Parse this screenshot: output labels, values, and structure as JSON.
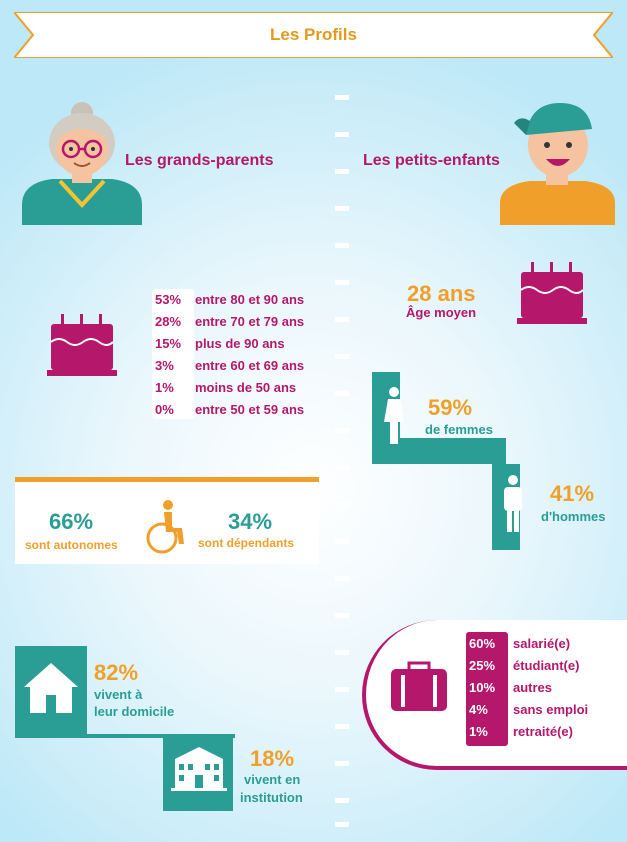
{
  "title": "Les Profils",
  "grandparents": {
    "heading": "Les grands-parents",
    "age_stats": [
      {
        "pct": "53%",
        "label": "entre 80 et 90 ans"
      },
      {
        "pct": "28%",
        "label": "entre 70 et 79 ans"
      },
      {
        "pct": "15%",
        "label": "plus de 90 ans"
      },
      {
        "pct": "3%",
        "label": "entre 60 et 69 ans"
      },
      {
        "pct": "1%",
        "label": "moins de 50 ans"
      },
      {
        "pct": "0%",
        "label": "entre 50 et 59 ans"
      }
    ],
    "autonomy": {
      "autonomous_pct": "66%",
      "autonomous_label": "sont autonomes",
      "dependent_pct": "34%",
      "dependent_label": "sont dépendants"
    },
    "housing": {
      "home_pct": "82%",
      "home_label_1": "vivent à",
      "home_label_2": "leur domicile",
      "institution_pct": "18%",
      "institution_label_1": "vivent en",
      "institution_label_2": "institution"
    }
  },
  "grandchildren": {
    "heading": "Les petits-enfants",
    "avg_age_value": "28 ans",
    "avg_age_label": "Âge moyen",
    "women_pct": "59%",
    "women_label": "de femmes",
    "men_pct": "41%",
    "men_label": "d'hommes",
    "jobs": [
      {
        "pct": "60%",
        "label": "salarié(e)"
      },
      {
        "pct": "25%",
        "label": "étudiant(e)"
      },
      {
        "pct": "10%",
        "label": "autres"
      },
      {
        "pct": "4%",
        "label": "sans emploi"
      },
      {
        "pct": "1%",
        "label": "retraité(e)"
      }
    ]
  },
  "colors": {
    "magenta": "#b5176b",
    "orange": "#f0a02a",
    "teal": "#2a9d95"
  },
  "icons": [
    "grandmother-icon",
    "grandchild-icon",
    "birthday-cake-icon",
    "wheelchair-icon",
    "woman-icon",
    "man-icon",
    "house-icon",
    "building-icon",
    "briefcase-icon"
  ]
}
